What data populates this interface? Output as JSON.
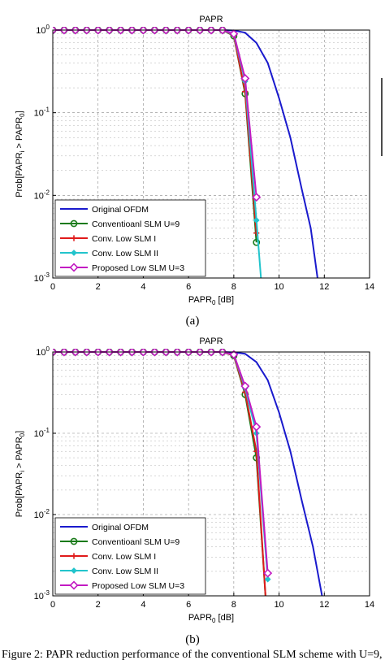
{
  "caption": "Figure 2: PAPR reduction performance of the conventional SLM scheme with U=9, and for the conventional SLM schemes I and II and the proposed low",
  "chart_data": [
    {
      "type": "line",
      "panel_label": "(a)",
      "title": "PAPR",
      "xlabel_main": "PAPR",
      "xlabel_sub": "0",
      "xlabel_unit": " [dB]",
      "ylabel": "Prob[PAPR",
      "ylabel_sub1": "i",
      "ylabel_mid": " > PAPR",
      "ylabel_sub2": "0",
      "ylabel_end": "]",
      "xlim": [
        0,
        14
      ],
      "ylim": [
        0.001,
        1
      ],
      "yscale": "log",
      "xticks": [
        "0",
        "2",
        "4",
        "6",
        "8",
        "10",
        "12",
        "14"
      ],
      "yticks": [
        {
          "base": "10",
          "exp": "0"
        },
        {
          "base": "10",
          "exp": "-1"
        },
        {
          "base": "10",
          "exp": "-2"
        },
        {
          "base": "10",
          "exp": "-3"
        }
      ],
      "grid": true,
      "legend_position": "bottom-left",
      "series": [
        {
          "name": "Original OFDM",
          "color": "#1a1acd",
          "marker": "none",
          "x": [
            0,
            7.5,
            8,
            8.5,
            9,
            9.5,
            10,
            10.5,
            11,
            11.4,
            11.7
          ],
          "y": [
            1,
            1,
            0.99,
            0.93,
            0.7,
            0.4,
            0.15,
            0.05,
            0.012,
            0.004,
            0.001
          ]
        },
        {
          "name": "Conventioanl SLM U=9",
          "color": "#1a7a1a",
          "marker": "circle",
          "x": [
            0,
            0.5,
            1,
            1.5,
            2,
            2.5,
            3,
            3.5,
            4,
            4.5,
            5,
            5.5,
            6,
            6.5,
            7,
            7.5,
            8,
            8.5,
            9
          ],
          "y": [
            1,
            1,
            1,
            1,
            1,
            1,
            1,
            1,
            1,
            1,
            1,
            1,
            1,
            1,
            1,
            1,
            0.85,
            0.17,
            0.0027
          ]
        },
        {
          "name": "Conv. Low SLM I",
          "color": "#e01a1a",
          "marker": "plus",
          "x": [
            0,
            0.5,
            1,
            1.5,
            2,
            2.5,
            3,
            3.5,
            4,
            4.5,
            5,
            5.5,
            6,
            6.5,
            7,
            7.5,
            8,
            8.5,
            9
          ],
          "y": [
            1,
            1,
            1,
            1,
            1,
            1,
            1,
            1,
            1,
            1,
            1,
            1,
            1,
            1,
            1,
            1,
            0.86,
            0.18,
            0.0035
          ]
        },
        {
          "name": "Conv. Low SLM II",
          "color": "#22c4cc",
          "marker": "diamond-filled",
          "x": [
            0,
            0.5,
            1,
            1.5,
            2,
            2.5,
            3,
            3.5,
            4,
            4.5,
            5,
            5.5,
            6,
            6.5,
            7,
            7.5,
            8,
            8.5,
            9,
            9.2
          ],
          "y": [
            1,
            1,
            1,
            1,
            1,
            1,
            1,
            1,
            1,
            1,
            1,
            1,
            1,
            1,
            1,
            1,
            0.88,
            0.24,
            0.005,
            0.001
          ]
        },
        {
          "name": "Proposed Low SLM U=3",
          "color": "#c21ac2",
          "marker": "diamond",
          "x": [
            0,
            0.5,
            1,
            1.5,
            2,
            2.5,
            3,
            3.5,
            4,
            4.5,
            5,
            5.5,
            6,
            6.5,
            7,
            7.5,
            8,
            8.5,
            9
          ],
          "y": [
            1,
            1,
            1,
            1,
            1,
            1,
            1,
            1,
            1,
            1,
            1,
            1,
            1,
            1,
            1,
            1,
            0.9,
            0.26,
            0.0095
          ]
        }
      ]
    },
    {
      "type": "line",
      "panel_label": "(b)",
      "title": "PAPR",
      "xlabel_main": "PAPR",
      "xlabel_sub": "0",
      "xlabel_unit": " [dB]",
      "ylabel": "Prob[PAPR",
      "ylabel_sub1": "i",
      "ylabel_mid": " > PAPR",
      "ylabel_sub2": "0",
      "ylabel_end": "]",
      "xlim": [
        0,
        14
      ],
      "ylim": [
        0.001,
        1
      ],
      "yscale": "log",
      "xticks": [
        "0",
        "2",
        "4",
        "6",
        "8",
        "10",
        "12",
        "14"
      ],
      "yticks": [
        {
          "base": "10",
          "exp": "0"
        },
        {
          "base": "10",
          "exp": "-1"
        },
        {
          "base": "10",
          "exp": "-2"
        },
        {
          "base": "10",
          "exp": "-3"
        }
      ],
      "grid": true,
      "legend_position": "bottom-left",
      "series": [
        {
          "name": "Original OFDM",
          "color": "#1a1acd",
          "marker": "none",
          "x": [
            0,
            7.5,
            8,
            8.5,
            9,
            9.5,
            10,
            10.5,
            11,
            11.5,
            11.9
          ],
          "y": [
            1,
            1,
            0.99,
            0.95,
            0.75,
            0.45,
            0.18,
            0.06,
            0.015,
            0.004,
            0.001
          ]
        },
        {
          "name": "Conventioanl SLM U=9",
          "color": "#1a7a1a",
          "marker": "circle",
          "x": [
            0,
            0.5,
            1,
            1.5,
            2,
            2.5,
            3,
            3.5,
            4,
            4.5,
            5,
            5.5,
            6,
            6.5,
            7,
            7.5,
            8,
            8.5,
            9,
            9.4
          ],
          "y": [
            1,
            1,
            1,
            1,
            1,
            1,
            1,
            1,
            1,
            1,
            1,
            1,
            1,
            1,
            1,
            1,
            0.9,
            0.3,
            0.05,
            0.001
          ]
        },
        {
          "name": "Conv. Low SLM I",
          "color": "#e01a1a",
          "marker": "plus",
          "x": [
            0,
            0.5,
            1,
            1.5,
            2,
            2.5,
            3,
            3.5,
            4,
            4.5,
            5,
            5.5,
            6,
            6.5,
            7,
            7.5,
            8,
            8.5,
            9,
            9.4
          ],
          "y": [
            1,
            1,
            1,
            1,
            1,
            1,
            1,
            1,
            1,
            1,
            1,
            1,
            1,
            1,
            1,
            1,
            0.9,
            0.32,
            0.06,
            0.001
          ]
        },
        {
          "name": "Conv. Low SLM II",
          "color": "#22c4cc",
          "marker": "diamond-filled",
          "x": [
            0,
            0.5,
            1,
            1.5,
            2,
            2.5,
            3,
            3.5,
            4,
            4.5,
            5,
            5.5,
            6,
            6.5,
            7,
            7.5,
            8,
            8.5,
            9,
            9.5
          ],
          "y": [
            1,
            1,
            1,
            1,
            1,
            1,
            1,
            1,
            1,
            1,
            1,
            1,
            1,
            1,
            1,
            1,
            0.92,
            0.36,
            0.1,
            0.0016
          ]
        },
        {
          "name": "Proposed Low SLM U=3",
          "color": "#c21ac2",
          "marker": "diamond",
          "x": [
            0,
            0.5,
            1,
            1.5,
            2,
            2.5,
            3,
            3.5,
            4,
            4.5,
            5,
            5.5,
            6,
            6.5,
            7,
            7.5,
            8,
            8.5,
            9,
            9.5
          ],
          "y": [
            1,
            1,
            1,
            1,
            1,
            1,
            1,
            1,
            1,
            1,
            1,
            1,
            1,
            1,
            1,
            1,
            0.93,
            0.38,
            0.12,
            0.0019
          ]
        }
      ]
    }
  ]
}
